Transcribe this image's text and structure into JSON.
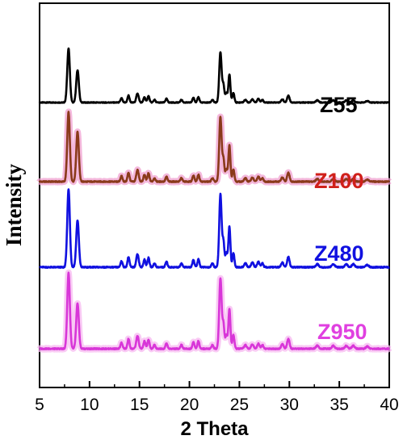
{
  "chart_data": {
    "type": "line",
    "title": "",
    "xlabel": "2 Theta",
    "ylabel": "Intensity",
    "xlim": [
      5,
      40
    ],
    "x_ticks": [
      5,
      10,
      15,
      20,
      25,
      30,
      35,
      40
    ],
    "y_ticks_shown": false,
    "grid": false,
    "legend": "none; series labels drawn inline at right of each trace",
    "peaks": [
      {
        "pos": 7.9,
        "h": 1.0,
        "w": 0.13
      },
      {
        "pos": 8.8,
        "h": 0.6,
        "w": 0.13
      },
      {
        "pos": 13.2,
        "h": 0.08,
        "w": 0.1
      },
      {
        "pos": 13.9,
        "h": 0.13,
        "w": 0.1
      },
      {
        "pos": 14.8,
        "h": 0.17,
        "w": 0.12
      },
      {
        "pos": 15.5,
        "h": 0.1,
        "w": 0.1
      },
      {
        "pos": 15.9,
        "h": 0.12,
        "w": 0.1
      },
      {
        "pos": 16.5,
        "h": 0.05,
        "w": 0.1
      },
      {
        "pos": 17.7,
        "h": 0.07,
        "w": 0.1
      },
      {
        "pos": 19.2,
        "h": 0.05,
        "w": 0.1
      },
      {
        "pos": 20.4,
        "h": 0.09,
        "w": 0.1
      },
      {
        "pos": 20.9,
        "h": 0.1,
        "w": 0.1
      },
      {
        "pos": 22.3,
        "h": 0.05,
        "w": 0.1
      },
      {
        "pos": 23.1,
        "h": 0.93,
        "w": 0.12
      },
      {
        "pos": 23.4,
        "h": 0.32,
        "w": 0.1
      },
      {
        "pos": 23.7,
        "h": 0.18,
        "w": 0.1
      },
      {
        "pos": 24.0,
        "h": 0.52,
        "w": 0.1
      },
      {
        "pos": 24.4,
        "h": 0.18,
        "w": 0.1
      },
      {
        "pos": 25.6,
        "h": 0.05,
        "w": 0.12
      },
      {
        "pos": 26.3,
        "h": 0.06,
        "w": 0.12
      },
      {
        "pos": 26.9,
        "h": 0.07,
        "w": 0.12
      },
      {
        "pos": 27.3,
        "h": 0.05,
        "w": 0.1
      },
      {
        "pos": 29.3,
        "h": 0.06,
        "w": 0.12
      },
      {
        "pos": 29.9,
        "h": 0.13,
        "w": 0.12
      },
      {
        "pos": 32.8,
        "h": 0.04,
        "w": 0.14
      },
      {
        "pos": 34.4,
        "h": 0.04,
        "w": 0.14
      },
      {
        "pos": 35.7,
        "h": 0.04,
        "w": 0.14
      },
      {
        "pos": 36.4,
        "h": 0.04,
        "w": 0.14
      },
      {
        "pos": 37.8,
        "h": 0.03,
        "w": 0.14
      }
    ],
    "series": [
      {
        "name": "Z55",
        "color": "#000000",
        "line_color": "#000000",
        "glow": false
      },
      {
        "name": "Z100",
        "color": "#d0201a",
        "line_color": "#8a3a1a",
        "glow": true,
        "glow_color": "#f0a0d0"
      },
      {
        "name": "Z480",
        "color": "#1010e0",
        "line_color": "#1010e0",
        "glow": false
      },
      {
        "name": "Z950",
        "color": "#e040e0",
        "line_color": "#d836d8",
        "glow": true,
        "glow_color": "#f7b8f0"
      }
    ]
  }
}
